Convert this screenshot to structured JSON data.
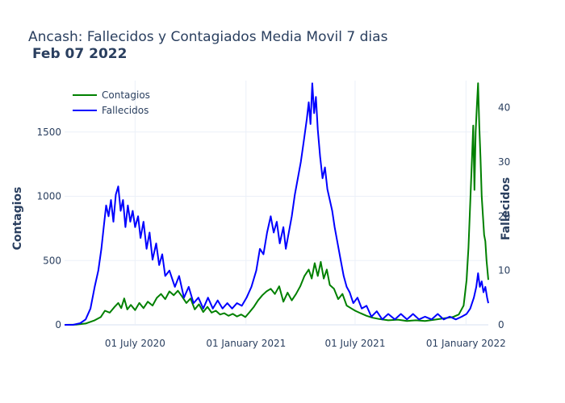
{
  "chart_data": {
    "type": "line",
    "title": "Ancash: Fallecidos y Contagiados Media Movil 7 dias",
    "subtitle": "Feb 07 2022",
    "xlabel": "",
    "ylabel": "Contagios",
    "y2label": "Fallecidos",
    "x_tick_labels": [
      "01 July 2020",
      "01 January 2021",
      "01 July 2021",
      "01 January 2022"
    ],
    "x_tick_dates": [
      "2020-07-01",
      "2021-01-01",
      "2021-07-01",
      "2022-01-01"
    ],
    "xlim": [
      "2020-03-06",
      "2022-02-07"
    ],
    "ylim": [
      0,
      1900
    ],
    "y_ticks": [
      0,
      500,
      1000,
      1500
    ],
    "y2lim": [
      0,
      45
    ],
    "y2_ticks": [
      0,
      10,
      20,
      30,
      40
    ],
    "grid": true,
    "legend_position": "top-left",
    "series": [
      {
        "name": "Contagios",
        "axis": "left",
        "color": "#008000",
        "points": [
          [
            "2020-03-06",
            0
          ],
          [
            "2020-03-25",
            2
          ],
          [
            "2020-04-10",
            10
          ],
          [
            "2020-04-25",
            35
          ],
          [
            "2020-05-05",
            60
          ],
          [
            "2020-05-12",
            110
          ],
          [
            "2020-05-20",
            95
          ],
          [
            "2020-05-28",
            140
          ],
          [
            "2020-06-03",
            170
          ],
          [
            "2020-06-08",
            130
          ],
          [
            "2020-06-13",
            205
          ],
          [
            "2020-06-18",
            120
          ],
          [
            "2020-06-24",
            155
          ],
          [
            "2020-07-01",
            115
          ],
          [
            "2020-07-08",
            170
          ],
          [
            "2020-07-15",
            130
          ],
          [
            "2020-07-22",
            180
          ],
          [
            "2020-07-30",
            150
          ],
          [
            "2020-08-06",
            210
          ],
          [
            "2020-08-13",
            240
          ],
          [
            "2020-08-20",
            200
          ],
          [
            "2020-08-27",
            260
          ],
          [
            "2020-09-03",
            230
          ],
          [
            "2020-09-10",
            265
          ],
          [
            "2020-09-17",
            220
          ],
          [
            "2020-09-24",
            170
          ],
          [
            "2020-10-01",
            205
          ],
          [
            "2020-10-08",
            120
          ],
          [
            "2020-10-15",
            160
          ],
          [
            "2020-10-22",
            100
          ],
          [
            "2020-10-29",
            140
          ],
          [
            "2020-11-05",
            95
          ],
          [
            "2020-11-12",
            110
          ],
          [
            "2020-11-19",
            80
          ],
          [
            "2020-11-26",
            90
          ],
          [
            "2020-12-03",
            70
          ],
          [
            "2020-12-10",
            85
          ],
          [
            "2020-12-17",
            65
          ],
          [
            "2020-12-24",
            80
          ],
          [
            "2020-12-31",
            60
          ],
          [
            "2021-01-07",
            100
          ],
          [
            "2021-01-14",
            140
          ],
          [
            "2021-01-21",
            190
          ],
          [
            "2021-01-28",
            230
          ],
          [
            "2021-02-04",
            260
          ],
          [
            "2021-02-11",
            280
          ],
          [
            "2021-02-18",
            240
          ],
          [
            "2021-02-25",
            300
          ],
          [
            "2021-03-04",
            180
          ],
          [
            "2021-03-11",
            250
          ],
          [
            "2021-03-18",
            190
          ],
          [
            "2021-03-25",
            240
          ],
          [
            "2021-04-01",
            300
          ],
          [
            "2021-04-08",
            380
          ],
          [
            "2021-04-15",
            430
          ],
          [
            "2021-04-20",
            360
          ],
          [
            "2021-04-25",
            480
          ],
          [
            "2021-04-30",
            380
          ],
          [
            "2021-05-05",
            490
          ],
          [
            "2021-05-10",
            360
          ],
          [
            "2021-05-15",
            430
          ],
          [
            "2021-05-20",
            310
          ],
          [
            "2021-05-27",
            280
          ],
          [
            "2021-06-03",
            200
          ],
          [
            "2021-06-10",
            240
          ],
          [
            "2021-06-17",
            150
          ],
          [
            "2021-06-24",
            130
          ],
          [
            "2021-07-01",
            110
          ],
          [
            "2021-07-10",
            90
          ],
          [
            "2021-07-20",
            70
          ],
          [
            "2021-07-30",
            55
          ],
          [
            "2021-08-10",
            45
          ],
          [
            "2021-08-25",
            35
          ],
          [
            "2021-09-10",
            40
          ],
          [
            "2021-09-25",
            30
          ],
          [
            "2021-10-10",
            35
          ],
          [
            "2021-10-25",
            30
          ],
          [
            "2021-11-10",
            40
          ],
          [
            "2021-11-25",
            50
          ],
          [
            "2021-12-10",
            60
          ],
          [
            "2021-12-20",
            80
          ],
          [
            "2021-12-28",
            150
          ],
          [
            "2022-01-02",
            350
          ],
          [
            "2022-01-05",
            600
          ],
          [
            "2022-01-08",
            950
          ],
          [
            "2022-01-11",
            1300
          ],
          [
            "2022-01-13",
            1550
          ],
          [
            "2022-01-15",
            1050
          ],
          [
            "2022-01-17",
            1500
          ],
          [
            "2022-01-19",
            1700
          ],
          [
            "2022-01-21",
            1880
          ],
          [
            "2022-01-23",
            1550
          ],
          [
            "2022-01-25",
            1300
          ],
          [
            "2022-01-27",
            1000
          ],
          [
            "2022-01-29",
            850
          ],
          [
            "2022-01-31",
            700
          ],
          [
            "2022-02-02",
            650
          ],
          [
            "2022-02-04",
            500
          ],
          [
            "2022-02-07",
            350
          ]
        ]
      },
      {
        "name": "Fallecidos",
        "axis": "right",
        "color": "#0000ff",
        "points": [
          [
            "2020-03-06",
            0
          ],
          [
            "2020-03-20",
            0
          ],
          [
            "2020-04-01",
            0.3
          ],
          [
            "2020-04-10",
            1
          ],
          [
            "2020-04-18",
            3
          ],
          [
            "2020-04-25",
            7
          ],
          [
            "2020-05-01",
            10
          ],
          [
            "2020-05-06",
            14
          ],
          [
            "2020-05-10",
            18
          ],
          [
            "2020-05-14",
            22
          ],
          [
            "2020-05-18",
            20
          ],
          [
            "2020-05-22",
            23
          ],
          [
            "2020-05-26",
            19
          ],
          [
            "2020-05-30",
            24
          ],
          [
            "2020-06-03",
            25.5
          ],
          [
            "2020-06-07",
            21
          ],
          [
            "2020-06-11",
            23
          ],
          [
            "2020-06-15",
            18
          ],
          [
            "2020-06-19",
            22
          ],
          [
            "2020-06-23",
            19
          ],
          [
            "2020-06-27",
            21
          ],
          [
            "2020-07-01",
            18
          ],
          [
            "2020-07-06",
            20
          ],
          [
            "2020-07-10",
            16
          ],
          [
            "2020-07-15",
            19
          ],
          [
            "2020-07-20",
            14
          ],
          [
            "2020-07-25",
            17
          ],
          [
            "2020-07-30",
            12
          ],
          [
            "2020-08-05",
            15
          ],
          [
            "2020-08-10",
            11
          ],
          [
            "2020-08-15",
            13
          ],
          [
            "2020-08-20",
            9
          ],
          [
            "2020-08-27",
            10
          ],
          [
            "2020-09-05",
            7
          ],
          [
            "2020-09-12",
            9
          ],
          [
            "2020-09-20",
            5
          ],
          [
            "2020-09-28",
            7
          ],
          [
            "2020-10-06",
            4
          ],
          [
            "2020-10-14",
            5
          ],
          [
            "2020-10-22",
            3
          ],
          [
            "2020-10-30",
            5
          ],
          [
            "2020-11-07",
            3
          ],
          [
            "2020-11-15",
            4.5
          ],
          [
            "2020-11-23",
            3
          ],
          [
            "2020-12-01",
            4
          ],
          [
            "2020-12-09",
            3
          ],
          [
            "2020-12-17",
            4
          ],
          [
            "2020-12-25",
            3.5
          ],
          [
            "2021-01-02",
            5
          ],
          [
            "2021-01-10",
            7
          ],
          [
            "2021-01-18",
            10
          ],
          [
            "2021-01-24",
            14
          ],
          [
            "2021-01-30",
            13
          ],
          [
            "2021-02-05",
            17
          ],
          [
            "2021-02-11",
            20
          ],
          [
            "2021-02-16",
            17
          ],
          [
            "2021-02-21",
            19
          ],
          [
            "2021-02-26",
            15
          ],
          [
            "2021-03-04",
            18
          ],
          [
            "2021-03-08",
            14
          ],
          [
            "2021-03-13",
            17
          ],
          [
            "2021-03-18",
            20
          ],
          [
            "2021-03-23",
            24
          ],
          [
            "2021-03-28",
            27
          ],
          [
            "2021-04-02",
            30
          ],
          [
            "2021-04-07",
            34
          ],
          [
            "2021-04-12",
            38
          ],
          [
            "2021-04-15",
            41
          ],
          [
            "2021-04-18",
            37
          ],
          [
            "2021-04-21",
            44.5
          ],
          [
            "2021-04-24",
            39
          ],
          [
            "2021-04-27",
            42
          ],
          [
            "2021-04-30",
            36
          ],
          [
            "2021-05-04",
            31
          ],
          [
            "2021-05-08",
            27
          ],
          [
            "2021-05-12",
            29
          ],
          [
            "2021-05-16",
            25
          ],
          [
            "2021-05-20",
            23
          ],
          [
            "2021-05-24",
            21
          ],
          [
            "2021-05-28",
            18
          ],
          [
            "2021-06-02",
            15
          ],
          [
            "2021-06-07",
            12
          ],
          [
            "2021-06-12",
            9
          ],
          [
            "2021-06-17",
            7
          ],
          [
            "2021-06-22",
            6
          ],
          [
            "2021-06-28",
            4
          ],
          [
            "2021-07-05",
            5
          ],
          [
            "2021-07-12",
            3
          ],
          [
            "2021-07-20",
            3.5
          ],
          [
            "2021-07-28",
            1.5
          ],
          [
            "2021-08-06",
            2.5
          ],
          [
            "2021-08-15",
            1
          ],
          [
            "2021-08-25",
            2
          ],
          [
            "2021-09-05",
            1
          ],
          [
            "2021-09-15",
            2
          ],
          [
            "2021-09-25",
            1
          ],
          [
            "2021-10-05",
            2
          ],
          [
            "2021-10-15",
            1
          ],
          [
            "2021-10-25",
            1.5
          ],
          [
            "2021-11-05",
            1
          ],
          [
            "2021-11-15",
            2
          ],
          [
            "2021-11-25",
            1
          ],
          [
            "2021-12-05",
            1.5
          ],
          [
            "2021-12-15",
            1
          ],
          [
            "2021-12-25",
            1.5
          ],
          [
            "2022-01-02",
            2
          ],
          [
            "2022-01-08",
            3
          ],
          [
            "2022-01-14",
            5
          ],
          [
            "2022-01-18",
            7
          ],
          [
            "2022-01-21",
            9.5
          ],
          [
            "2022-01-24",
            7
          ],
          [
            "2022-01-27",
            8
          ],
          [
            "2022-01-30",
            6
          ],
          [
            "2022-02-02",
            7
          ],
          [
            "2022-02-05",
            5
          ],
          [
            "2022-02-07",
            4
          ]
        ]
      }
    ]
  }
}
